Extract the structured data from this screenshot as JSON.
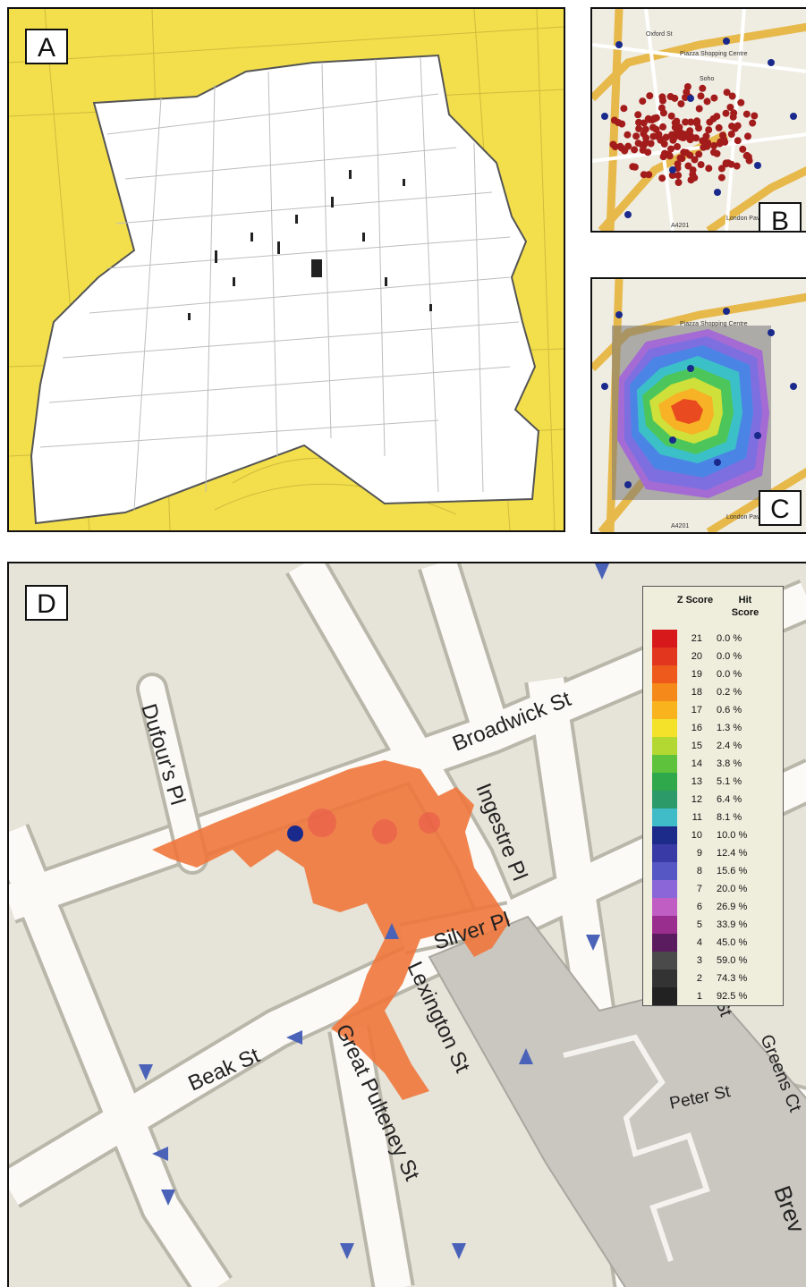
{
  "panels": {
    "a": {
      "label": "A"
    },
    "b": {
      "label": "B"
    },
    "c": {
      "label": "C"
    },
    "d": {
      "label": "D"
    }
  },
  "small_map_labels": {
    "piazza": "Piazza Shopping Centre",
    "soho": "Soho",
    "a4201": "A4201",
    "london_pavilion": "London Pavilion",
    "oxford_st": "Oxford St"
  },
  "streets": {
    "dufours_pl": "Dufour's Pl",
    "broadwick_st": "Broadwick St",
    "ingestre_pl": "Ingestre Pl",
    "silver_pl": "Silver Pl",
    "lexington_st": "Lexington St",
    "beak_st": "Beak St",
    "great_pulteney_st": "Great Pulteney St",
    "peter_st": "Peter St",
    "greens_ct": "Greens Ct",
    "brewer_partial": "Brev",
    "st_partial": "St"
  },
  "legend": {
    "header_z": "Z Score",
    "header_hit": "Hit Score",
    "rows": [
      {
        "z": "21",
        "hit": "0.0 %",
        "color": "#d7191c"
      },
      {
        "z": "20",
        "hit": "0.0 %",
        "color": "#e2361f"
      },
      {
        "z": "19",
        "hit": "0.0 %",
        "color": "#ee5a1c"
      },
      {
        "z": "18",
        "hit": "0.2 %",
        "color": "#f58a1a"
      },
      {
        "z": "17",
        "hit": "0.6 %",
        "color": "#f9b31c"
      },
      {
        "z": "16",
        "hit": "1.3 %",
        "color": "#f3e12a"
      },
      {
        "z": "15",
        "hit": "2.4 %",
        "color": "#b4d832"
      },
      {
        "z": "14",
        "hit": "3.8 %",
        "color": "#5fc23c"
      },
      {
        "z": "13",
        "hit": "5.1 %",
        "color": "#2ea84a"
      },
      {
        "z": "12",
        "hit": "6.4 %",
        "color": "#2d9a6a"
      },
      {
        "z": "11",
        "hit": "8.1 %",
        "color": "#3fbcc8"
      },
      {
        "z": "10",
        "hit": "10.0 %",
        "color": "#1c2a8a"
      },
      {
        "z": "9",
        "hit": "12.4 %",
        "color": "#3a3aa6"
      },
      {
        "z": "8",
        "hit": "15.6 %",
        "color": "#5656c4"
      },
      {
        "z": "7",
        "hit": "20.0 %",
        "color": "#8a66d8"
      },
      {
        "z": "6",
        "hit": "26.9 %",
        "color": "#c05ec4"
      },
      {
        "z": "5",
        "hit": "33.9 %",
        "color": "#9a2e8e"
      },
      {
        "z": "4",
        "hit": "45.0 %",
        "color": "#5a1c5e"
      },
      {
        "z": "3",
        "hit": "59.0 %",
        "color": "#4a4a4a"
      },
      {
        "z": "2",
        "hit": "74.3 %",
        "color": "#333333"
      },
      {
        "z": "1",
        "hit": "92.5 %",
        "color": "#222222"
      }
    ]
  },
  "colors": {
    "yellow_mask": "#f2df4b",
    "road": "#fbfaf6",
    "block": "#e9e6dc",
    "hotspot": "#f0773c",
    "pump_dot": "#1a2a8c",
    "case_dot": "#a31c1c"
  }
}
